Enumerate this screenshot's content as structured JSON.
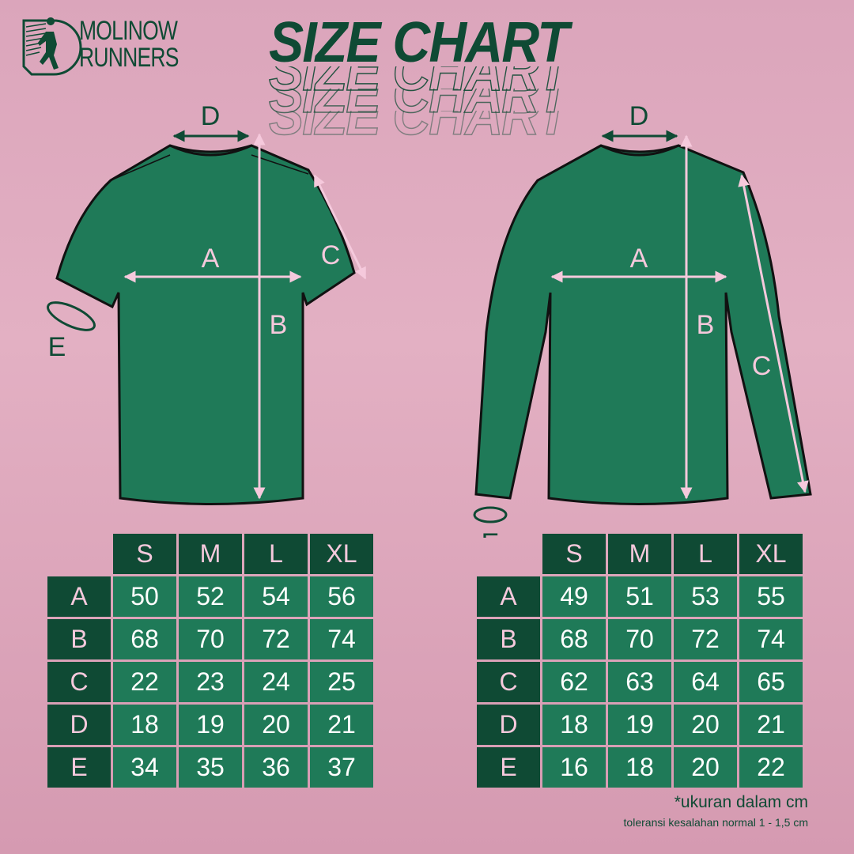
{
  "brand": {
    "line1": "MOLINOW",
    "line2": "RUNNERS"
  },
  "title": "SIZE CHART",
  "colors": {
    "background": "#dba5bb",
    "dark_green": "#0f4a34",
    "shirt_green": "#1f7a58",
    "measure_pink": "#f5c9dc"
  },
  "labels": {
    "a": "A",
    "b": "B",
    "c": "C",
    "d": "D",
    "e": "E"
  },
  "short_sleeve_table": {
    "sizes": [
      "S",
      "M",
      "L",
      "XL"
    ],
    "rows": [
      {
        "label": "A",
        "values": [
          "50",
          "52",
          "54",
          "56"
        ]
      },
      {
        "label": "B",
        "values": [
          "68",
          "70",
          "72",
          "74"
        ]
      },
      {
        "label": "C",
        "values": [
          "22",
          "23",
          "24",
          "25"
        ]
      },
      {
        "label": "D",
        "values": [
          "18",
          "19",
          "20",
          "21"
        ]
      },
      {
        "label": "E",
        "values": [
          "34",
          "35",
          "36",
          "37"
        ]
      }
    ]
  },
  "long_sleeve_table": {
    "sizes": [
      "S",
      "M",
      "L",
      "XL"
    ],
    "rows": [
      {
        "label": "A",
        "values": [
          "49",
          "51",
          "53",
          "55"
        ]
      },
      {
        "label": "B",
        "values": [
          "68",
          "70",
          "72",
          "74"
        ]
      },
      {
        "label": "C",
        "values": [
          "62",
          "63",
          "64",
          "65"
        ]
      },
      {
        "label": "D",
        "values": [
          "18",
          "19",
          "20",
          "21"
        ]
      },
      {
        "label": "E",
        "values": [
          "16",
          "18",
          "20",
          "22"
        ]
      }
    ]
  },
  "notes": {
    "unit": "*ukuran dalam cm",
    "tolerance": "toleransi kesalahan normal 1 - 1,5 cm"
  }
}
